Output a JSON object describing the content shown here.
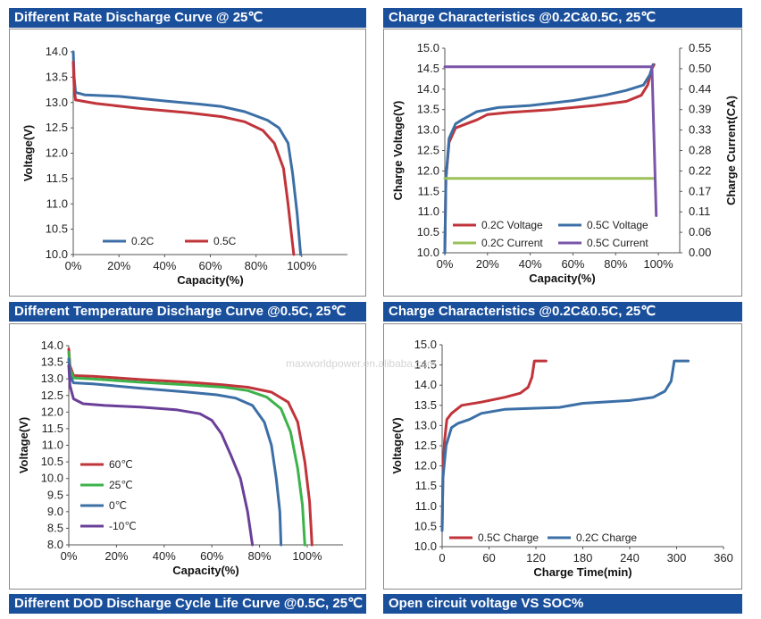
{
  "colors": {
    "banner": "#1a4f9c",
    "red": "#c0343a",
    "blue": "#3c6fa6",
    "green": "#3cb34a",
    "purple": "#6a3f99",
    "olive": "#9cc05a",
    "violet": "#7a55a8"
  },
  "banners": {
    "rate_title": "Different Rate Discharge Curve @ 25℃",
    "charge_title_1": "Charge  Characteristics @0.2C&0.5C, 25℃",
    "temp_title": "Different Temperature Discharge Curve @0.5C, 25℃",
    "charge_title_2": "Charge  Characteristics @0.2C&0.5C, 25℃",
    "dod_title": "Different DOD Discharge Cycle Life Curve @0.5C, 25℃",
    "ocv_title": "Open circuit voltage VS SOC%"
  },
  "watermark": "maxworldpower.en.alibaba.com",
  "chart_data": [
    {
      "id": "rate",
      "type": "line",
      "xlabel": "Capacity(%)",
      "ylabel": "Voltage(V)",
      "xlim": [
        0,
        120
      ],
      "ylim": [
        10.0,
        14.0
      ],
      "xticks": [
        "0%",
        "20%",
        "40%",
        "60%",
        "80%",
        "100%"
      ],
      "yticks": [
        "10.0",
        "10.5",
        "11.0",
        "11.5",
        "12.0",
        "12.5",
        "13.0",
        "13.5",
        "14.0"
      ],
      "legend_position": "bottom-left",
      "series": [
        {
          "name": "0.2C",
          "color": "#3c6fa6",
          "points": [
            [
              0,
              14.0
            ],
            [
              0.4,
              13.5
            ],
            [
              1,
              13.2
            ],
            [
              5,
              13.15
            ],
            [
              20,
              13.12
            ],
            [
              40,
              13.03
            ],
            [
              55,
              12.97
            ],
            [
              65,
              12.92
            ],
            [
              75,
              12.82
            ],
            [
              85,
              12.65
            ],
            [
              90,
              12.5
            ],
            [
              94,
              12.2
            ],
            [
              96,
              11.6
            ],
            [
              98,
              10.8
            ],
            [
              99.5,
              10.0
            ]
          ]
        },
        {
          "name": "0.5C",
          "color": "#c0343a",
          "points": [
            [
              0,
              13.8
            ],
            [
              0.4,
              13.3
            ],
            [
              1,
              13.05
            ],
            [
              10,
              12.98
            ],
            [
              30,
              12.88
            ],
            [
              50,
              12.8
            ],
            [
              65,
              12.72
            ],
            [
              75,
              12.62
            ],
            [
              83,
              12.45
            ],
            [
              88,
              12.2
            ],
            [
              92,
              11.7
            ],
            [
              94,
              11.0
            ],
            [
              95.5,
              10.4
            ],
            [
              96.5,
              10.0
            ]
          ]
        }
      ]
    },
    {
      "id": "charge",
      "type": "line",
      "xlabel": "Capacity(%)",
      "ylabel": "Charge Voltage(V)",
      "y2label": "Charge Current(CA)",
      "xlim": [
        0,
        110
      ],
      "ylim": [
        10.0,
        15.0
      ],
      "y2lim": [
        0.0,
        0.55
      ],
      "xticks": [
        "0%",
        "20%",
        "40%",
        "60%",
        "80%",
        "100%"
      ],
      "yticks": [
        "10.0",
        "10.5",
        "11.0",
        "11.5",
        "12.0",
        "12.5",
        "13.0",
        "13.5",
        "14.0",
        "14.5",
        "15.0"
      ],
      "y2ticks": [
        "0.00",
        "0.06",
        "0.11",
        "0.17",
        "0.22",
        "0.28",
        "0.33",
        "0.39",
        "0.44",
        "0.50",
        "0.55"
      ],
      "legend_position": "bottom",
      "series": [
        {
          "name": "0.2C Voltage",
          "axis": "left",
          "color": "#c0343a",
          "points": [
            [
              0,
              10.0
            ],
            [
              0.5,
              11.8
            ],
            [
              2,
              12.7
            ],
            [
              5,
              13.05
            ],
            [
              10,
              13.15
            ],
            [
              15,
              13.25
            ],
            [
              20,
              13.38
            ],
            [
              30,
              13.43
            ],
            [
              50,
              13.5
            ],
            [
              70,
              13.6
            ],
            [
              85,
              13.7
            ],
            [
              92,
              13.85
            ],
            [
              95,
              14.1
            ],
            [
              97,
              14.5
            ],
            [
              98,
              14.6
            ]
          ]
        },
        {
          "name": "0.5C Voltage",
          "axis": "left",
          "color": "#3c6fa6",
          "points": [
            [
              0,
              10.0
            ],
            [
              0.5,
              11.8
            ],
            [
              2,
              12.8
            ],
            [
              5,
              13.15
            ],
            [
              8,
              13.25
            ],
            [
              15,
              13.45
            ],
            [
              25,
              13.55
            ],
            [
              40,
              13.6
            ],
            [
              60,
              13.72
            ],
            [
              75,
              13.85
            ],
            [
              85,
              13.97
            ],
            [
              93,
              14.1
            ],
            [
              96,
              14.35
            ],
            [
              97.5,
              14.6
            ]
          ]
        },
        {
          "name": "0.2C Current",
          "axis": "right",
          "color": "#9cc05a",
          "points": [
            [
              0,
              0.2
            ],
            [
              98,
              0.2
            ]
          ]
        },
        {
          "name": "0.5C Current",
          "axis": "right",
          "color": "#7a55a8",
          "points": [
            [
              0,
              0.5
            ],
            [
              97,
              0.5
            ],
            [
              99,
              0.1
            ]
          ]
        }
      ]
    },
    {
      "id": "temp",
      "type": "line",
      "xlabel": "Capacity(%)",
      "ylabel": "Voltage(V)",
      "xlim": [
        0,
        115
      ],
      "ylim": [
        8.0,
        14.0
      ],
      "xticks": [
        "0%",
        "20%",
        "40%",
        "60%",
        "80%",
        "100%"
      ],
      "yticks": [
        "8.0",
        "8.5",
        "9.0",
        "9.5",
        "10.0",
        "10.5",
        "11.0",
        "11.5",
        "12.0",
        "12.5",
        "13.0",
        "13.5",
        "14.0"
      ],
      "legend_position": "bottom-left",
      "series": [
        {
          "name": "60℃",
          "color": "#c0343a",
          "points": [
            [
              0,
              13.9
            ],
            [
              0.5,
              13.4
            ],
            [
              2,
              13.1
            ],
            [
              10,
              13.08
            ],
            [
              30,
              12.98
            ],
            [
              50,
              12.9
            ],
            [
              65,
              12.82
            ],
            [
              75,
              12.75
            ],
            [
              85,
              12.6
            ],
            [
              92,
              12.3
            ],
            [
              96,
              11.7
            ],
            [
              99,
              10.5
            ],
            [
              101,
              9.3
            ],
            [
              102,
              8.0
            ]
          ]
        },
        {
          "name": "25℃",
          "color": "#3cb34a",
          "points": [
            [
              0,
              13.8
            ],
            [
              0.5,
              13.3
            ],
            [
              2,
              13.03
            ],
            [
              10,
              13.0
            ],
            [
              30,
              12.9
            ],
            [
              50,
              12.82
            ],
            [
              65,
              12.75
            ],
            [
              75,
              12.65
            ],
            [
              83,
              12.45
            ],
            [
              89,
              12.1
            ],
            [
              93,
              11.4
            ],
            [
              96,
              10.3
            ],
            [
              98,
              9.2
            ],
            [
              99,
              8.0
            ]
          ]
        },
        {
          "name": "0℃",
          "color": "#3c6fa6",
          "points": [
            [
              0,
              13.6
            ],
            [
              0.5,
              13.1
            ],
            [
              2,
              12.88
            ],
            [
              10,
              12.85
            ],
            [
              30,
              12.72
            ],
            [
              50,
              12.6
            ],
            [
              62,
              12.52
            ],
            [
              70,
              12.42
            ],
            [
              77,
              12.2
            ],
            [
              82,
              11.7
            ],
            [
              85,
              11.0
            ],
            [
              87,
              10.0
            ],
            [
              88.5,
              9.0
            ],
            [
              89,
              8.0
            ]
          ]
        },
        {
          "name": "-10℃",
          "color": "#6a3f99",
          "points": [
            [
              0,
              13.4
            ],
            [
              0.5,
              12.8
            ],
            [
              2,
              12.4
            ],
            [
              6,
              12.25
            ],
            [
              15,
              12.2
            ],
            [
              30,
              12.15
            ],
            [
              45,
              12.07
            ],
            [
              55,
              11.95
            ],
            [
              60,
              11.75
            ],
            [
              64,
              11.35
            ],
            [
              68,
              10.7
            ],
            [
              72,
              10.0
            ],
            [
              75,
              9.0
            ],
            [
              77,
              8.0
            ]
          ]
        }
      ]
    },
    {
      "id": "time",
      "type": "line",
      "xlabel": "Charge Time(min)",
      "ylabel": "Voltage(V)",
      "xlim": [
        0,
        360
      ],
      "ylim": [
        10.0,
        15.0
      ],
      "xticks": [
        "0",
        "60",
        "120",
        "180",
        "240",
        "300",
        "360"
      ],
      "yticks": [
        "10.0",
        "10.5",
        "11.0",
        "11.5",
        "12.0",
        "12.5",
        "13.0",
        "13.5",
        "14.0",
        "14.5",
        "15.0"
      ],
      "legend_position": "bottom",
      "series": [
        {
          "name": "0.5C Charge",
          "color": "#c0343a",
          "points": [
            [
              0,
              10.4
            ],
            [
              1,
              11.8
            ],
            [
              3,
              12.6
            ],
            [
              6,
              13.15
            ],
            [
              12,
              13.3
            ],
            [
              25,
              13.5
            ],
            [
              50,
              13.58
            ],
            [
              80,
              13.7
            ],
            [
              100,
              13.8
            ],
            [
              110,
              13.95
            ],
            [
              115,
              14.2
            ],
            [
              118,
              14.6
            ],
            [
              133,
              14.6
            ]
          ]
        },
        {
          "name": "0.2C Charge",
          "color": "#3c6fa6",
          "points": [
            [
              0,
              10.4
            ],
            [
              1,
              11.7
            ],
            [
              5,
              12.5
            ],
            [
              12,
              12.95
            ],
            [
              20,
              13.05
            ],
            [
              35,
              13.15
            ],
            [
              50,
              13.3
            ],
            [
              80,
              13.4
            ],
            [
              120,
              13.43
            ],
            [
              150,
              13.45
            ],
            [
              180,
              13.55
            ],
            [
              240,
              13.62
            ],
            [
              270,
              13.7
            ],
            [
              285,
              13.85
            ],
            [
              293,
              14.1
            ],
            [
              297,
              14.6
            ],
            [
              315,
              14.6
            ]
          ]
        }
      ]
    }
  ]
}
